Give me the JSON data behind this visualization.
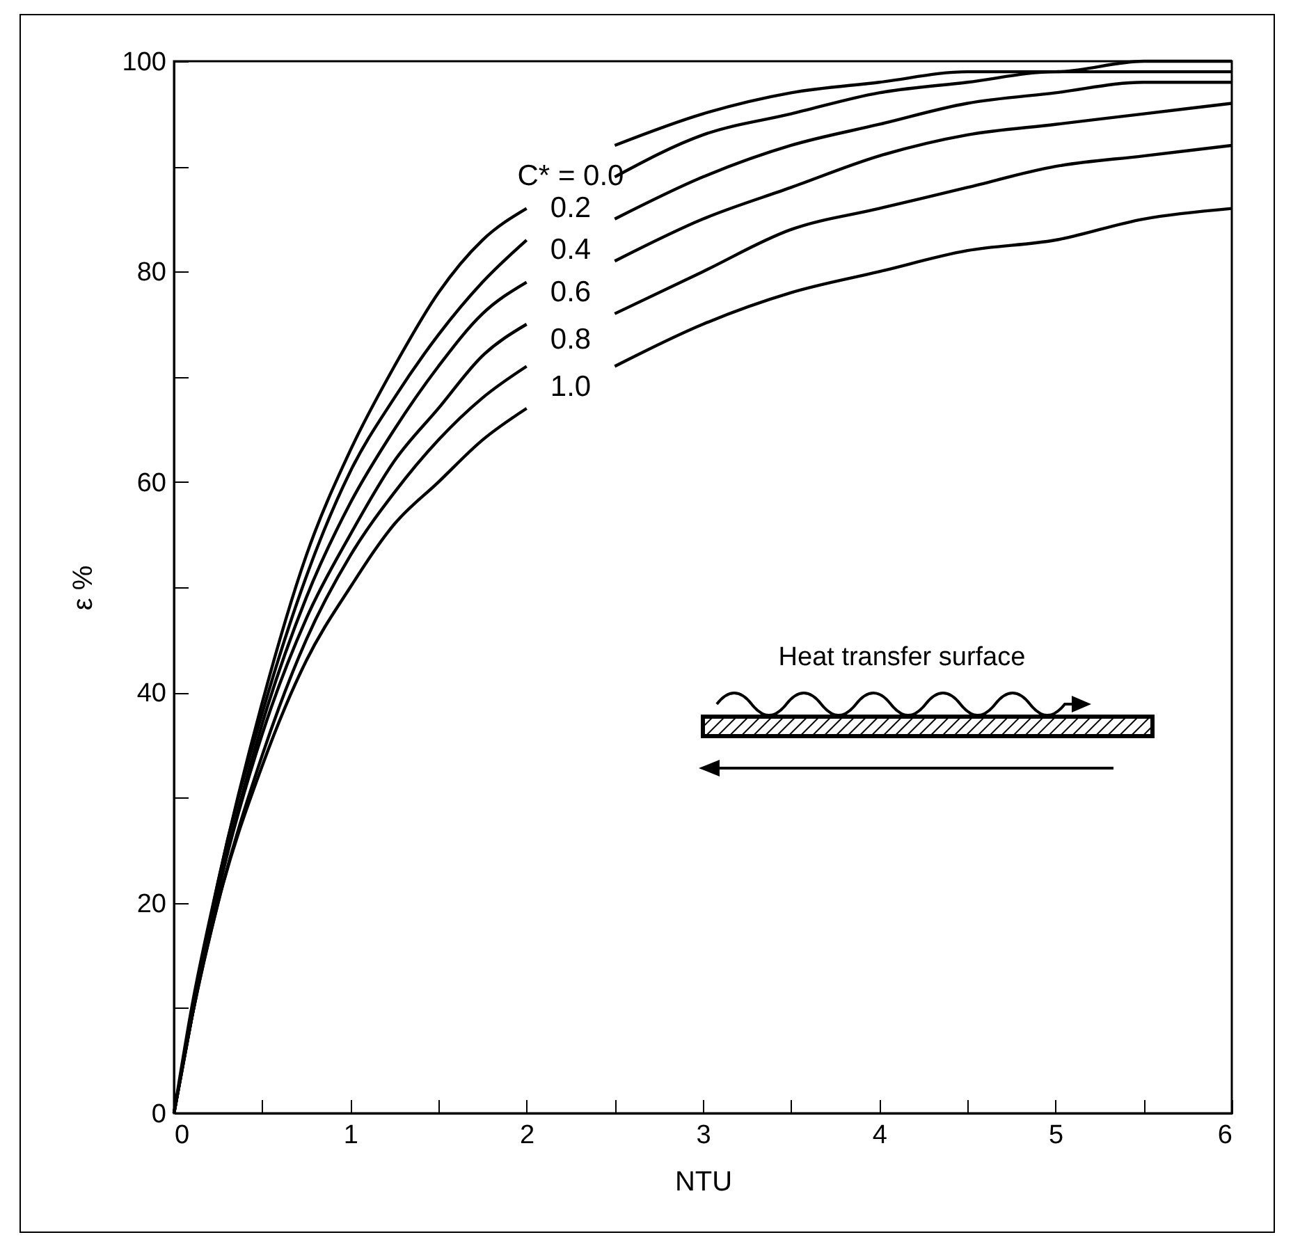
{
  "chart_data": {
    "type": "line",
    "xlabel": "NTU",
    "ylabel": "ε %",
    "x": [
      0,
      0.1,
      0.25,
      0.5,
      0.75,
      1,
      1.25,
      1.5,
      1.75,
      2,
      2.25,
      2.5,
      3,
      3.5,
      4,
      4.5,
      5,
      5.5,
      6
    ],
    "series": [
      {
        "color": "#000000",
        "values": [
          0,
          10,
          22,
          39,
          53,
          63,
          71,
          78,
          83,
          86,
          null,
          92,
          95,
          97,
          98,
          99,
          99,
          100,
          100
        ]
      },
      {
        "color": "#000000",
        "values": [
          0,
          9,
          22,
          38,
          51,
          61,
          68,
          74,
          79,
          83,
          null,
          89,
          93,
          95,
          97,
          98,
          99,
          99,
          99
        ]
      },
      {
        "color": "#000000",
        "values": [
          0,
          9,
          21,
          37,
          49,
          58,
          65,
          71,
          76,
          79,
          null,
          85,
          89,
          92,
          94,
          96,
          97,
          98,
          98
        ]
      },
      {
        "color": "#000000",
        "values": [
          0,
          9,
          21,
          36,
          47,
          55,
          62,
          67,
          72,
          75,
          null,
          81,
          85,
          88,
          91,
          93,
          94,
          95,
          96
        ]
      },
      {
        "color": "#000000",
        "values": [
          0,
          9,
          20,
          34,
          45,
          53,
          59,
          64,
          68,
          71,
          null,
          76,
          80,
          84,
          86,
          88,
          90,
          91,
          92
        ]
      },
      {
        "color": "#000000",
        "values": [
          0,
          9,
          20,
          33,
          43,
          50,
          56,
          60,
          64,
          67,
          null,
          71,
          75,
          78,
          80,
          82,
          83,
          85,
          86
        ]
      }
    ],
    "annotations": [
      "C* = 0.0",
      "0.2",
      "0.4",
      "0.6",
      "0.8",
      "1.0",
      "Heat transfer surface"
    ],
    "xlim": [
      0,
      6
    ],
    "ylim": [
      0,
      100
    ],
    "xticks": [
      0,
      {
        "value": 0.5,
        "label": null
      },
      1,
      {
        "value": 1.5,
        "label": null
      },
      2,
      {
        "value": 2.5,
        "label": null
      },
      3,
      {
        "value": 3.5,
        "label": null
      },
      4,
      {
        "value": 4.5,
        "label": null
      },
      5,
      {
        "value": 5.5,
        "label": null
      },
      6
    ],
    "yticks": [
      0,
      {
        "value": 10,
        "label": null
      },
      20,
      {
        "value": 30,
        "label": null
      },
      40,
      {
        "value": 50,
        "label": null
      },
      60,
      {
        "value": 70,
        "label": null
      },
      80,
      {
        "value": 90,
        "label": null
      },
      100
    ],
    "grid": false,
    "legend": false
  }
}
